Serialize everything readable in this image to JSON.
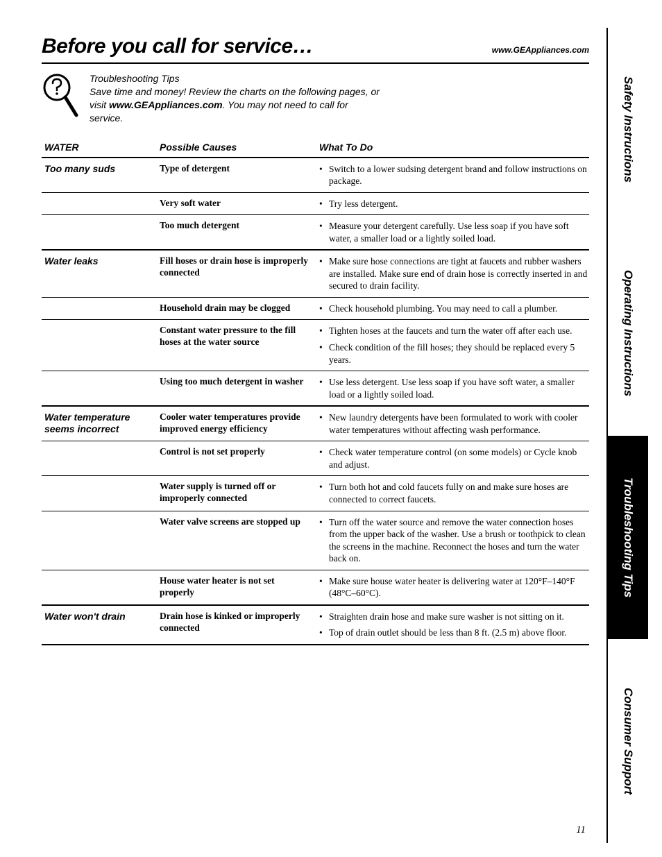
{
  "header": {
    "title": "Before you call for service…",
    "url": "www.GEAppliances.com"
  },
  "intro": {
    "heading": "Troubleshooting Tips",
    "text_before": "Save time and money! Review the charts on the following pages, or visit ",
    "bold_url": "www.GEAppliances.com",
    "text_after": ". You may not need to call for service."
  },
  "table": {
    "section_label": "WATER",
    "col_cause": "Possible Causes",
    "col_action": "What To Do",
    "groups": [
      {
        "problem": "Too many suds",
        "rows": [
          {
            "cause": "Type of detergent",
            "actions": [
              "Switch to a lower sudsing detergent brand and follow instructions on package."
            ]
          },
          {
            "cause": "Very soft water",
            "actions": [
              "Try less detergent."
            ]
          },
          {
            "cause": "Too much detergent",
            "actions": [
              "Measure your detergent carefully. Use less soap if you have soft water, a smaller load or a lightly soiled load."
            ]
          }
        ]
      },
      {
        "problem": "Water leaks",
        "rows": [
          {
            "cause": "Fill hoses or drain hose is improperly connected",
            "actions": [
              "Make sure hose connections are tight at faucets and rubber washers are installed. Make sure end of drain hose is correctly inserted in and secured to drain facility."
            ]
          },
          {
            "cause": "Household drain may be clogged",
            "actions": [
              "Check household plumbing. You may need to call a plumber."
            ]
          },
          {
            "cause": "Constant water pressure to the fill hoses at the water source",
            "actions": [
              "Tighten hoses at the faucets and turn the water off after each use.",
              "Check condition of the fill hoses; they should be replaced every 5 years."
            ]
          },
          {
            "cause": "Using too much detergent in washer",
            "actions": [
              "Use less detergent. Use less soap if you have soft water, a smaller load or a lightly soiled load."
            ]
          }
        ]
      },
      {
        "problem": "Water temperature seems incorrect",
        "rows": [
          {
            "cause": "Cooler water temperatures provide improved energy efficiency",
            "actions": [
              "New laundry detergents have been formulated to work with cooler water temperatures without affecting wash performance."
            ]
          },
          {
            "cause": "Control is not set properly",
            "actions": [
              "Check water temperature control (on some models) or Cycle knob and adjust."
            ]
          },
          {
            "cause": "Water supply is turned off or improperly connected",
            "actions": [
              "Turn both hot and cold faucets fully on and make sure hoses are connected to correct faucets."
            ]
          },
          {
            "cause": "Water valve screens are stopped up",
            "actions": [
              "Turn off the water source and remove the water connection hoses from the upper back of the washer. Use a brush or toothpick to clean the screens in the machine. Reconnect the hoses and turn the water back on."
            ]
          },
          {
            "cause": "House water heater is not set properly",
            "actions": [
              "Make sure house water heater is delivering water at 120°F–140°F (48°C–60°C)."
            ]
          }
        ]
      },
      {
        "problem": "Water won't drain",
        "rows": [
          {
            "cause": "Drain hose is kinked or improperly connected",
            "actions": [
              "Straighten drain hose and make sure washer is not sitting on it.",
              "Top of drain outlet should be less than 8 ft. (2.5 m) above floor."
            ]
          }
        ]
      }
    ]
  },
  "tabs": [
    {
      "label": "Safety Instructions",
      "active": false
    },
    {
      "label": "Operating Instructions",
      "active": false
    },
    {
      "label": "Troubleshooting Tips",
      "active": true
    },
    {
      "label": "Consumer Support",
      "active": false
    }
  ],
  "page_number": "11",
  "colors": {
    "text": "#000000",
    "background": "#ffffff",
    "tab_active_bg": "#000000",
    "tab_active_fg": "#ffffff"
  }
}
